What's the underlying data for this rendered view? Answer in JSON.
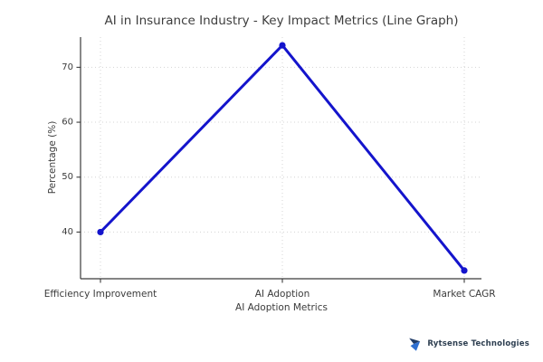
{
  "chart_data": {
    "type": "line",
    "title": "AI in Insurance Industry - Key Impact Metrics (Line Graph)",
    "categories": [
      "Efficiency Improvement",
      "AI Adoption",
      "Market CAGR"
    ],
    "values": [
      40,
      74,
      33
    ],
    "xlabel": "AI Adoption Metrics",
    "ylabel": "Percentage (%)",
    "yticks": [
      40,
      50,
      60,
      70
    ],
    "ylim": [
      31.5,
      75.5
    ],
    "grid": true,
    "grid_style": "dotted",
    "legend": "none",
    "line_color": "#1414cc",
    "marker_color": "#1414cc",
    "grid_color": "#d4d4d4",
    "axis_color": "#3b3b3b",
    "text_color": "#3b3b3b"
  },
  "branding": {
    "logo_text": "Rytsense Technologies",
    "logo_icon": "bolt-icon",
    "icon_color_dark": "#1e3a66",
    "icon_color_light": "#2e6fd0",
    "text_color": "#2d3e50"
  }
}
